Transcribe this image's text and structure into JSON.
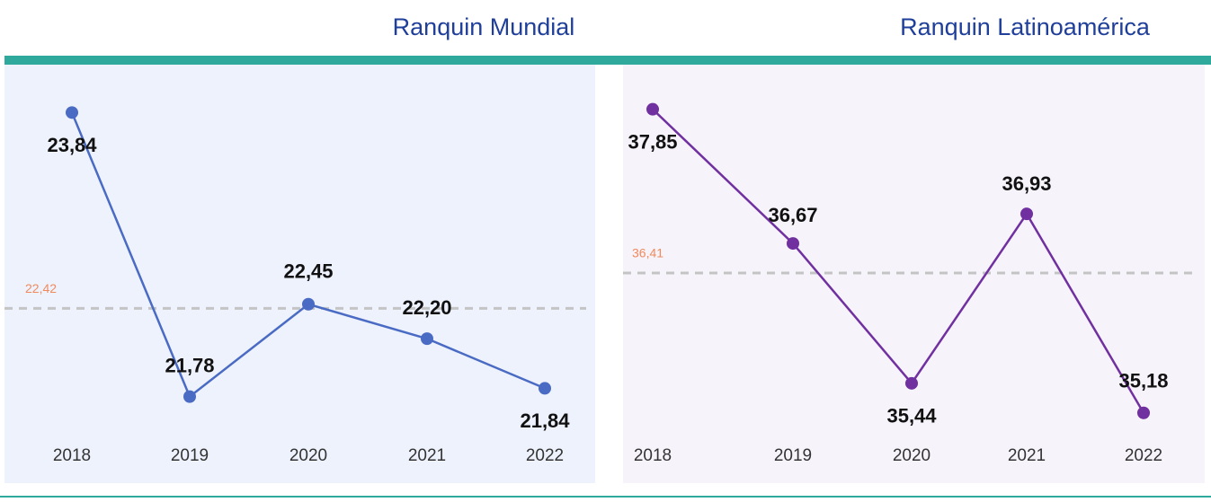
{
  "chart_data": [
    {
      "type": "line",
      "title": "Ranquin Mundial",
      "categories": [
        "2018",
        "2019",
        "2020",
        "2021",
        "2022"
      ],
      "values": [
        23.84,
        21.78,
        22.45,
        22.2,
        21.84
      ],
      "value_labels": [
        "23,84",
        "21,78",
        "22,45",
        "22,20",
        "21,84"
      ],
      "color": "#4a6bc4",
      "background": "#eef2fd",
      "reference_line": {
        "value": 22.42,
        "label": "22,42"
      },
      "ylim": [
        21.53,
        24.07
      ]
    },
    {
      "type": "line",
      "title": "Ranquin Latinoamérica",
      "categories": [
        "2018",
        "2019",
        "2020",
        "2021",
        "2022"
      ],
      "values": [
        37.85,
        36.67,
        35.44,
        36.93,
        35.18
      ],
      "value_labels": [
        "37,85",
        "36,67",
        "35,44",
        "36,93",
        "35,18"
      ],
      "color": "#7030a0",
      "background": "#f6f3fa",
      "reference_line": {
        "value": 36.41,
        "label": "36,41"
      },
      "ylim": [
        35.02,
        38.1
      ]
    }
  ]
}
